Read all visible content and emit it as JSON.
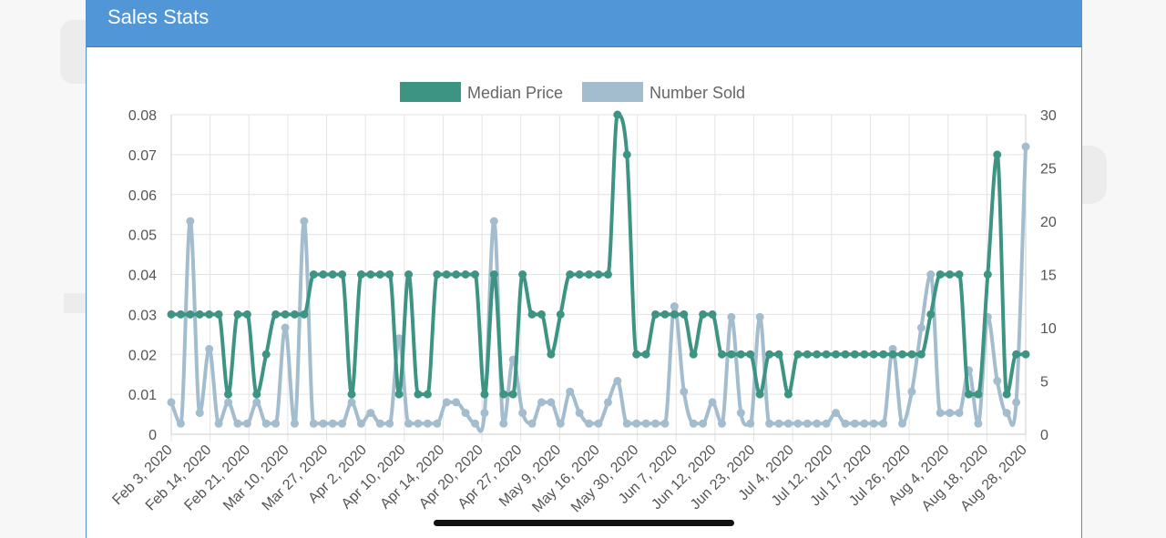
{
  "card": {
    "title": "Sales Stats"
  },
  "colors": {
    "header": "#5197d8",
    "median": "#3d9483",
    "sold": "#a3bdcf",
    "grid": "#e2e2e2"
  },
  "chart_data": {
    "type": "line",
    "title": "Sales Stats",
    "legend": [
      "Median Price",
      "Number Sold"
    ],
    "legend_position": "top",
    "grid": true,
    "x_tick_labels": [
      "Feb 3, 2020",
      "Feb 14, 2020",
      "Feb 21, 2020",
      "Mar 10, 2020",
      "Mar 27, 2020",
      "Apr 2, 2020",
      "Apr 10, 2020",
      "Apr 14, 2020",
      "Apr 20, 2020",
      "Apr 27, 2020",
      "May 9, 2020",
      "May 16, 2020",
      "May 30, 2020",
      "Jun 7, 2020",
      "Jun 12, 2020",
      "Jun 23, 2020",
      "Jul 4, 2020",
      "Jul 12, 2020",
      "Jul 17, 2020",
      "Jul 26, 2020",
      "Aug 4, 2020",
      "Aug 18, 2020",
      "Aug 28, 2020"
    ],
    "y_left": {
      "ticks": [
        "0",
        "0.01",
        "0.02",
        "0.03",
        "0.04",
        "0.05",
        "0.06",
        "0.07",
        "0.08"
      ],
      "range": [
        0,
        0.08
      ]
    },
    "y_right": {
      "ticks": [
        "0",
        "5",
        "10",
        "15",
        "20",
        "25",
        "30"
      ],
      "range": [
        0,
        30
      ]
    },
    "series": [
      {
        "name": "Median Price",
        "axis": "left",
        "color": "#3d9483",
        "values": [
          0.03,
          0.03,
          0.03,
          0.03,
          0.03,
          0.03,
          0.01,
          0.03,
          0.03,
          0.01,
          0.02,
          0.03,
          0.03,
          0.03,
          0.03,
          0.04,
          0.04,
          0.04,
          0.04,
          0.01,
          0.04,
          0.04,
          0.04,
          0.04,
          0.01,
          0.04,
          0.01,
          0.01,
          0.04,
          0.04,
          0.04,
          0.04,
          0.04,
          0.01,
          0.04,
          0.01,
          0.01,
          0.04,
          0.03,
          0.03,
          0.02,
          0.03,
          0.04,
          0.04,
          0.04,
          0.04,
          0.04,
          0.08,
          0.07,
          0.02,
          0.02,
          0.03,
          0.03,
          0.03,
          0.03,
          0.02,
          0.03,
          0.03,
          0.02,
          0.02,
          0.02,
          0.02,
          0.01,
          0.02,
          0.02,
          0.01,
          0.02,
          0.02,
          0.02,
          0.02,
          0.02,
          0.02,
          0.02,
          0.02,
          0.02,
          0.02,
          0.02,
          0.02,
          0.02,
          0.02,
          0.03,
          0.04,
          0.04,
          0.04,
          0.01,
          0.01,
          0.04,
          0.07,
          0.01,
          0.02,
          0.02
        ]
      },
      {
        "name": "Number Sold",
        "axis": "right",
        "color": "#a3bdcf",
        "values": [
          3,
          1,
          20,
          2,
          8,
          1,
          3,
          1,
          1,
          3,
          1,
          1,
          10,
          1,
          20,
          1,
          1,
          1,
          1,
          3,
          1,
          2,
          1,
          1,
          9,
          1,
          1,
          1,
          1,
          3,
          3,
          2,
          1,
          2,
          20,
          1,
          7,
          2,
          1,
          3,
          3,
          1,
          4,
          2,
          1,
          1,
          3,
          5,
          1,
          1,
          1,
          1,
          1,
          12,
          4,
          1,
          1,
          3,
          1,
          11,
          2,
          1,
          11,
          1,
          1,
          1,
          1,
          1,
          1,
          1,
          2,
          1,
          1,
          1,
          1,
          1,
          8,
          1,
          4,
          10,
          15,
          2,
          2,
          2,
          6,
          1,
          11,
          5,
          2,
          3,
          27
        ]
      }
    ]
  }
}
